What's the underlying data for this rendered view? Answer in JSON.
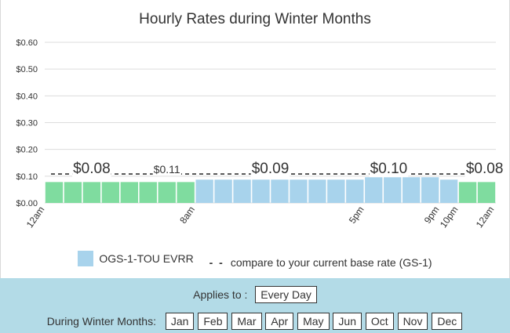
{
  "chart_data": {
    "type": "bar",
    "title": "Hourly Rates during Winter Months",
    "ylim": [
      0,
      0.6
    ],
    "y_ticks": [
      "$0.00",
      "$0.10",
      "$0.20",
      "$0.30",
      "$0.40",
      "$0.50",
      "$0.60"
    ],
    "y_tick_values": [
      0,
      0.1,
      0.2,
      0.3,
      0.4,
      0.5,
      0.6
    ],
    "grid": true,
    "hours": [
      0,
      1,
      2,
      3,
      4,
      5,
      6,
      7,
      8,
      9,
      10,
      11,
      12,
      13,
      14,
      15,
      16,
      17,
      18,
      19,
      20,
      21,
      22,
      23
    ],
    "x_tick_labels": [
      {
        "hour": 0,
        "label": "12am"
      },
      {
        "hour": 8,
        "label": "8am"
      },
      {
        "hour": 17,
        "label": "5pm"
      },
      {
        "hour": 21,
        "label": "9pm"
      },
      {
        "hour": 22,
        "label": "10pm"
      },
      {
        "hour": 24,
        "label": "12am"
      }
    ],
    "series": [
      {
        "name": "OGS-1-TOU EVRR",
        "values": [
          0.078,
          0.078,
          0.078,
          0.078,
          0.078,
          0.078,
          0.078,
          0.078,
          0.087,
          0.087,
          0.087,
          0.087,
          0.087,
          0.087,
          0.087,
          0.087,
          0.087,
          0.096,
          0.096,
          0.096,
          0.096,
          0.087,
          0.078,
          0.078
        ],
        "colors": [
          "#7fdc9f",
          "#7fdc9f",
          "#7fdc9f",
          "#7fdc9f",
          "#7fdc9f",
          "#7fdc9f",
          "#7fdc9f",
          "#7fdc9f",
          "#a8d3ec",
          "#a8d3ec",
          "#a8d3ec",
          "#a8d3ec",
          "#a8d3ec",
          "#a8d3ec",
          "#a8d3ec",
          "#a8d3ec",
          "#a8d3ec",
          "#a8d3ec",
          "#a8d3ec",
          "#a8d3ec",
          "#a8d3ec",
          "#a8d3ec",
          "#7fdc9f",
          "#7fdc9f"
        ]
      }
    ],
    "base_rate_line": {
      "name": "compare to your current base rate (GS-1)",
      "value": 0.108
    },
    "data_labels": [
      {
        "hour": 2.5,
        "text": "$0.08",
        "size": "large"
      },
      {
        "hour": 6.5,
        "text": "$0.11",
        "size": "small"
      },
      {
        "hour": 12,
        "text": "$0.09",
        "size": "large"
      },
      {
        "hour": 18.3,
        "text": "$0.10",
        "size": "large"
      },
      {
        "hour": 23.4,
        "text": "$0.08",
        "size": "large"
      }
    ]
  },
  "legend": {
    "series_label": "OGS-1-TOU EVRR",
    "dash_glyph": "- -",
    "line_label": "compare to your current base rate (GS-1)"
  },
  "controls": {
    "applies_label": "Applies to :",
    "applies_value": "Every Day",
    "months_label": "During Winter Months:",
    "months": [
      "Jan",
      "Feb",
      "Mar",
      "Apr",
      "May",
      "Jun",
      "Oct",
      "Nov",
      "Dec"
    ]
  }
}
